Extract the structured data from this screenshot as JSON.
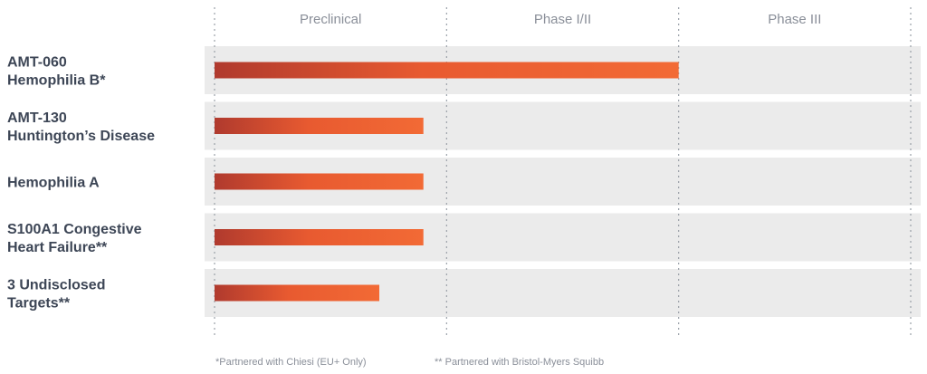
{
  "chart_data": {
    "type": "bar",
    "orientation": "horizontal",
    "phases": [
      "Preclinical",
      "Phase I/II",
      "Phase III"
    ],
    "rows": [
      {
        "label_lines": [
          "AMT-060",
          "Hemophilia  B*"
        ],
        "progress": 2.0
      },
      {
        "label_lines": [
          "AMT-130",
          "Huntington’s Disease"
        ],
        "progress": 0.9
      },
      {
        "label_lines": [
          "Hemophilia  A"
        ],
        "progress": 0.9
      },
      {
        "label_lines": [
          "S100A1 Congestive",
          "Heart Failure**"
        ],
        "progress": 0.9
      },
      {
        "label_lines": [
          "3 Undisclosed",
          "Targets**"
        ],
        "progress": 0.71
      }
    ],
    "xlim": [
      0,
      3
    ],
    "colors": {
      "bar_start": "#b03a2e",
      "bar_end": "#f26a35",
      "row_bg": "#ebebeb",
      "grid": "#9aa0a8"
    }
  },
  "footnotes": [
    "*Partnered with Chiesi (EU+ Only)",
    "** Partnered with Bristol-Myers Squibb"
  ]
}
